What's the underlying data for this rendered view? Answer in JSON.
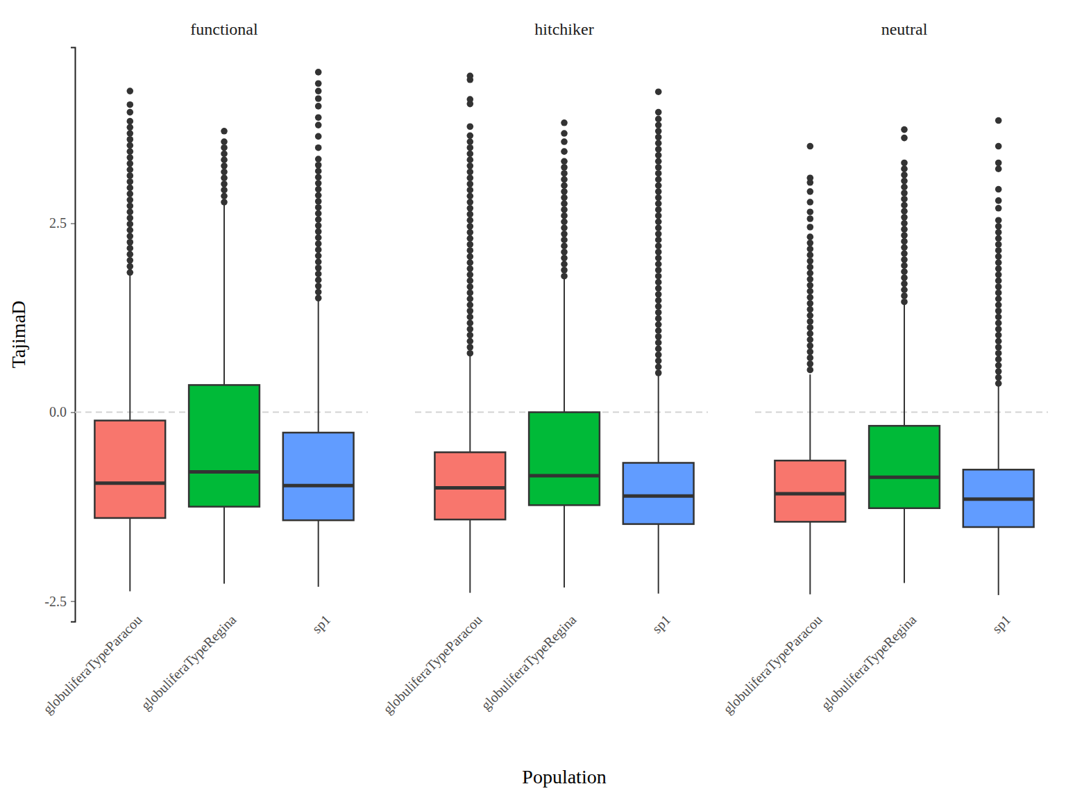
{
  "chart_data": {
    "type": "box",
    "x_label": "Population",
    "y_label": "TajimaD",
    "ylim": [
      -2.77,
      4.83
    ],
    "yticks": [
      {
        "value": -2.5,
        "label": "-2.5"
      },
      {
        "value": 0,
        "label": "0.0"
      },
      {
        "value": 2.5,
        "label": "2.5"
      }
    ],
    "hline": 0,
    "colors": [
      "#F8766D",
      "#00BA38",
      "#619CFF"
    ],
    "facets": [
      {
        "title": "functional",
        "categories": [
          "globuliferaTypeParacou",
          "globuliferaTypeRegina",
          "sp1"
        ],
        "boxes": [
          {
            "whisker_low": -2.37,
            "q1": -1.4,
            "median": -0.94,
            "q3": -0.11,
            "whisker_high": 1.83,
            "outliers": [
              1.85,
              1.93,
              2.01,
              2.09,
              2.17,
              2.25,
              2.33,
              2.41,
              2.49,
              2.57,
              2.65,
              2.73,
              2.81,
              2.89,
              2.97,
              3.05,
              3.13,
              3.21,
              3.29,
              3.37,
              3.45,
              3.53,
              3.61,
              3.69,
              3.77,
              3.85,
              3.97,
              4.07,
              4.25
            ]
          },
          {
            "whisker_low": -2.27,
            "q1": -1.25,
            "median": -0.79,
            "q3": 0.36,
            "whisker_high": 2.76,
            "outliers": [
              2.78,
              2.86,
              2.94,
              3.02,
              3.1,
              3.18,
              3.26,
              3.34,
              3.42,
              3.5,
              3.58,
              3.72
            ]
          },
          {
            "whisker_low": -2.31,
            "q1": -1.43,
            "median": -0.97,
            "q3": -0.27,
            "whisker_high": 1.49,
            "outliers": [
              1.51,
              1.59,
              1.67,
              1.75,
              1.83,
              1.91,
              1.99,
              2.07,
              2.15,
              2.23,
              2.31,
              2.39,
              2.47,
              2.55,
              2.63,
              2.71,
              2.79,
              2.87,
              2.95,
              3.03,
              3.11,
              3.19,
              3.27,
              3.35,
              3.5,
              3.65,
              3.8,
              3.9,
              4.05,
              4.15,
              4.25,
              4.35,
              4.5
            ]
          }
        ]
      },
      {
        "title": "hitchiker",
        "categories": [
          "globuliferaTypeParacou",
          "globuliferaTypeRegina",
          "sp1"
        ],
        "boxes": [
          {
            "whisker_low": -2.39,
            "q1": -1.42,
            "median": -1.0,
            "q3": -0.53,
            "whisker_high": 0.75,
            "outliers": [
              0.78,
              0.86,
              0.94,
              1.02,
              1.1,
              1.18,
              1.26,
              1.34,
              1.42,
              1.5,
              1.58,
              1.66,
              1.74,
              1.82,
              1.9,
              1.98,
              2.06,
              2.14,
              2.22,
              2.3,
              2.38,
              2.46,
              2.54,
              2.62,
              2.7,
              2.78,
              2.86,
              2.94,
              3.02,
              3.1,
              3.18,
              3.26,
              3.34,
              3.42,
              3.5,
              3.58,
              3.66,
              3.78,
              4.08,
              4.14,
              4.4,
              4.45
            ]
          },
          {
            "whisker_low": -2.32,
            "q1": -1.23,
            "median": -0.84,
            "q3": 0.0,
            "whisker_high": 1.78,
            "outliers": [
              1.8,
              1.88,
              1.96,
              2.04,
              2.12,
              2.2,
              2.28,
              2.36,
              2.44,
              2.52,
              2.6,
              2.68,
              2.76,
              2.84,
              2.92,
              3.0,
              3.08,
              3.16,
              3.24,
              3.32,
              3.45,
              3.58,
              3.69,
              3.83
            ]
          },
          {
            "whisker_low": -2.4,
            "q1": -1.48,
            "median": -1.11,
            "q3": -0.67,
            "whisker_high": 0.5,
            "outliers": [
              0.52,
              0.6,
              0.68,
              0.76,
              0.84,
              0.92,
              1.0,
              1.08,
              1.16,
              1.24,
              1.32,
              1.4,
              1.48,
              1.56,
              1.64,
              1.72,
              1.8,
              1.88,
              1.96,
              2.04,
              2.12,
              2.2,
              2.28,
              2.36,
              2.44,
              2.52,
              2.6,
              2.68,
              2.76,
              2.84,
              2.92,
              3.0,
              3.08,
              3.16,
              3.24,
              3.32,
              3.4,
              3.48,
              3.56,
              3.64,
              3.72,
              3.8,
              3.88,
              3.97,
              4.24
            ]
          }
        ]
      },
      {
        "title": "neutral",
        "categories": [
          "globuliferaTypeParacou",
          "globuliferaTypeRegina",
          "sp1"
        ],
        "boxes": [
          {
            "whisker_low": -2.41,
            "q1": -1.45,
            "median": -1.08,
            "q3": -0.64,
            "whisker_high": 0.5,
            "outliers": [
              0.56,
              0.64,
              0.72,
              0.8,
              0.88,
              0.96,
              1.04,
              1.12,
              1.2,
              1.28,
              1.36,
              1.44,
              1.52,
              1.6,
              1.68,
              1.76,
              1.84,
              1.92,
              2.0,
              2.08,
              2.16,
              2.24,
              2.32,
              2.45,
              2.56,
              2.65,
              2.78,
              2.92,
              3.04,
              3.1,
              3.52
            ]
          },
          {
            "whisker_low": -2.26,
            "q1": -1.27,
            "median": -0.86,
            "q3": -0.18,
            "whisker_high": 1.42,
            "outliers": [
              1.46,
              1.54,
              1.62,
              1.7,
              1.78,
              1.86,
              1.94,
              2.02,
              2.1,
              2.18,
              2.26,
              2.34,
              2.42,
              2.5,
              2.58,
              2.66,
              2.74,
              2.82,
              2.9,
              2.98,
              3.06,
              3.14,
              3.22,
              3.3,
              3.63,
              3.74
            ]
          },
          {
            "whisker_low": -2.42,
            "q1": -1.52,
            "median": -1.15,
            "q3": -0.76,
            "whisker_high": 0.36,
            "outliers": [
              0.38,
              0.46,
              0.54,
              0.62,
              0.7,
              0.78,
              0.86,
              0.94,
              1.02,
              1.1,
              1.18,
              1.26,
              1.34,
              1.42,
              1.5,
              1.58,
              1.66,
              1.74,
              1.82,
              1.9,
              1.98,
              2.06,
              2.14,
              2.22,
              2.3,
              2.38,
              2.46,
              2.54,
              2.7,
              2.8,
              2.95,
              3.22,
              3.3,
              3.52,
              3.86
            ]
          }
        ]
      }
    ]
  }
}
